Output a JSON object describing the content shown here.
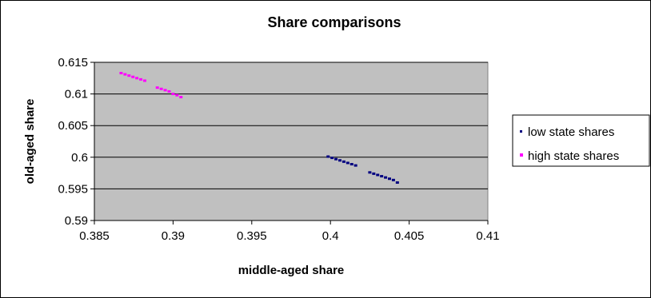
{
  "chart_data": {
    "type": "scatter",
    "title": "Share comparisons",
    "xlabel": "middle-aged share",
    "ylabel": "old-aged share",
    "xlim": [
      0.385,
      0.41
    ],
    "ylim": [
      0.59,
      0.615
    ],
    "xticks": [
      "0.385",
      "0.39",
      "0.395",
      "0.4",
      "0.405",
      "0.41"
    ],
    "yticks": [
      "0.59",
      "0.595",
      "0.6",
      "0.605",
      "0.61",
      "0.615"
    ],
    "grid": "horizontal",
    "legend_position": "right",
    "plot_background": "#c0c0c0",
    "series": [
      {
        "name": "low state shares",
        "color": "#000080",
        "marker": "square",
        "points": [
          {
            "x": 0.39985,
            "y": 0.6001
          },
          {
            "x": 0.4001,
            "y": 0.5999
          },
          {
            "x": 0.40035,
            "y": 0.5997
          },
          {
            "x": 0.4006,
            "y": 0.5995
          },
          {
            "x": 0.40085,
            "y": 0.5993
          },
          {
            "x": 0.4011,
            "y": 0.5991
          },
          {
            "x": 0.40135,
            "y": 0.5989
          },
          {
            "x": 0.4016,
            "y": 0.5987
          },
          {
            "x": 0.4025,
            "y": 0.5976
          },
          {
            "x": 0.40275,
            "y": 0.5974
          },
          {
            "x": 0.403,
            "y": 0.5972
          },
          {
            "x": 0.40325,
            "y": 0.597
          },
          {
            "x": 0.4035,
            "y": 0.5968
          },
          {
            "x": 0.40375,
            "y": 0.5966
          },
          {
            "x": 0.404,
            "y": 0.5964
          },
          {
            "x": 0.40425,
            "y": 0.596
          }
        ]
      },
      {
        "name": "high state shares",
        "color": "#ff00ff",
        "marker": "square",
        "points": [
          {
            "x": 0.3867,
            "y": 0.6133
          },
          {
            "x": 0.38695,
            "y": 0.6131
          },
          {
            "x": 0.3872,
            "y": 0.6129
          },
          {
            "x": 0.38745,
            "y": 0.6127
          },
          {
            "x": 0.3877,
            "y": 0.6125
          },
          {
            "x": 0.38795,
            "y": 0.6123
          },
          {
            "x": 0.3882,
            "y": 0.6121
          },
          {
            "x": 0.389,
            "y": 0.611
          },
          {
            "x": 0.38925,
            "y": 0.6108
          },
          {
            "x": 0.3895,
            "y": 0.6106
          },
          {
            "x": 0.38975,
            "y": 0.6104
          },
          {
            "x": 0.39,
            "y": 0.61
          },
          {
            "x": 0.39025,
            "y": 0.6098
          },
          {
            "x": 0.3905,
            "y": 0.6095
          }
        ]
      }
    ]
  }
}
